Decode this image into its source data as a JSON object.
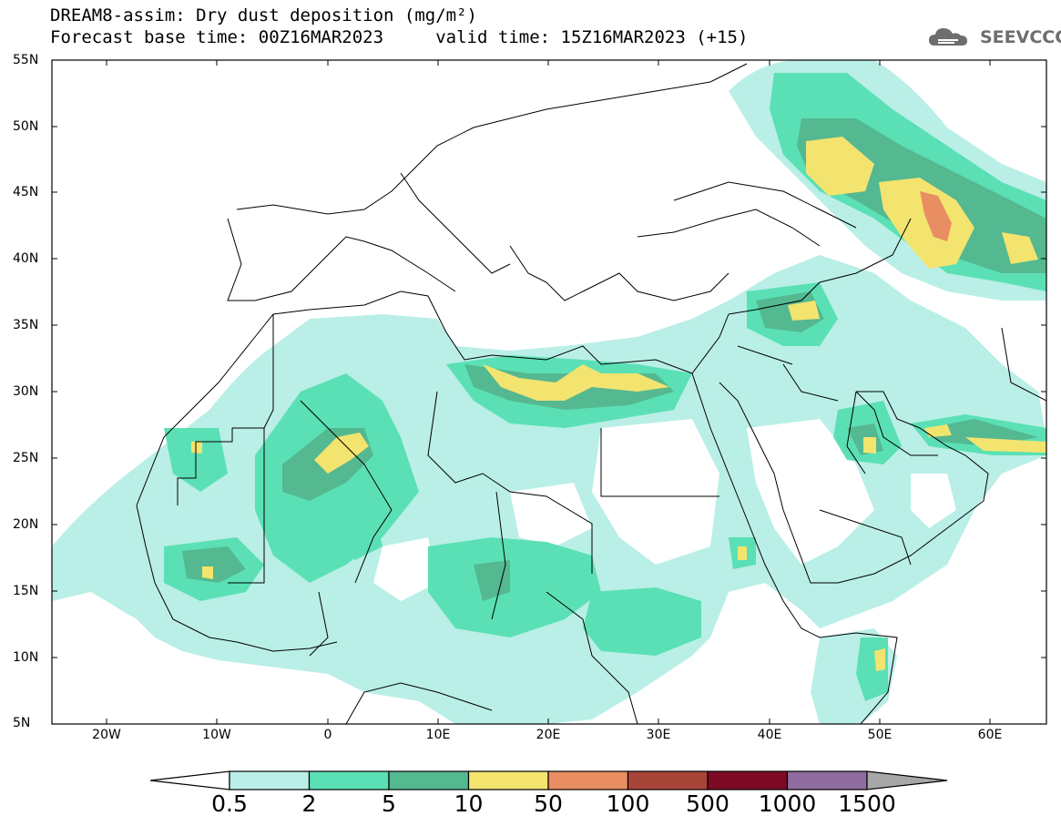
{
  "title": {
    "line1": "DREAM8-assim: Dry dust deposition (mg/m²)",
    "line2": "Forecast base time: 00Z16MAR2023     valid time: 15Z16MAR2023 (+15)"
  },
  "logo": {
    "text": "SEEVCCC",
    "icon": "cloud-icon"
  },
  "map": {
    "projection": "lat-lon",
    "lon_range": [
      -25,
      65
    ],
    "lat_range": [
      5,
      55
    ],
    "lat_labels": [
      "55N",
      "50N",
      "45N",
      "40N",
      "35N",
      "30N",
      "25N",
      "20N",
      "15N",
      "10N",
      "5N"
    ],
    "lon_labels": [
      "20W",
      "10W",
      "0",
      "10E",
      "20E",
      "30E",
      "40E",
      "50E",
      "60E"
    ]
  },
  "legend": {
    "levels": [
      "0.5",
      "2",
      "5",
      "10",
      "50",
      "100",
      "500",
      "1000",
      "1500"
    ],
    "colors": [
      "#b9efe6",
      "#5be0b5",
      "#54b890",
      "#f3e46f",
      "#e98d62",
      "#a84539",
      "#7e0b25",
      "#8e6c9f",
      "#a7a7a7"
    ],
    "below_color": "#ffffff",
    "above_color": "#a7a7a7"
  }
}
